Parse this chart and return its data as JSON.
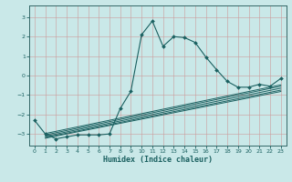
{
  "xlabel": "Humidex (Indice chaleur)",
  "background_color": "#c9e8e8",
  "grid_color": "#aacccc",
  "line_color": "#1a6060",
  "spine_color": "#336666",
  "xlim": [
    -0.5,
    23.5
  ],
  "ylim": [
    -3.6,
    3.6
  ],
  "xticks": [
    0,
    1,
    2,
    3,
    4,
    5,
    6,
    7,
    8,
    9,
    10,
    11,
    12,
    13,
    14,
    15,
    16,
    17,
    18,
    19,
    20,
    21,
    22,
    23
  ],
  "yticks": [
    -3,
    -2,
    -1,
    0,
    1,
    2,
    3
  ],
  "main_x": [
    0,
    1,
    2,
    3,
    4,
    5,
    6,
    7,
    8,
    9,
    10,
    11,
    12,
    13,
    14,
    15,
    16,
    17,
    18,
    19,
    20,
    21,
    22,
    23
  ],
  "main_y": [
    -2.3,
    -3.0,
    -3.25,
    -3.15,
    -3.05,
    -3.05,
    -3.05,
    -3.0,
    -1.7,
    -0.8,
    2.1,
    2.8,
    1.5,
    2.0,
    1.95,
    1.7,
    0.95,
    0.3,
    -0.3,
    -0.6,
    -0.6,
    -0.45,
    -0.55,
    -0.15
  ],
  "reg_lines": [
    {
      "x0": 1,
      "y0": -3.05,
      "x1": 23,
      "y1": -0.55
    },
    {
      "x0": 1,
      "y0": -3.12,
      "x1": 23,
      "y1": -0.65
    },
    {
      "x0": 1,
      "y0": -3.18,
      "x1": 23,
      "y1": -0.75
    },
    {
      "x0": 1,
      "y0": -3.22,
      "x1": 23,
      "y1": -0.82
    },
    {
      "x0": 1,
      "y0": -2.98,
      "x1": 23,
      "y1": -0.48
    }
  ]
}
